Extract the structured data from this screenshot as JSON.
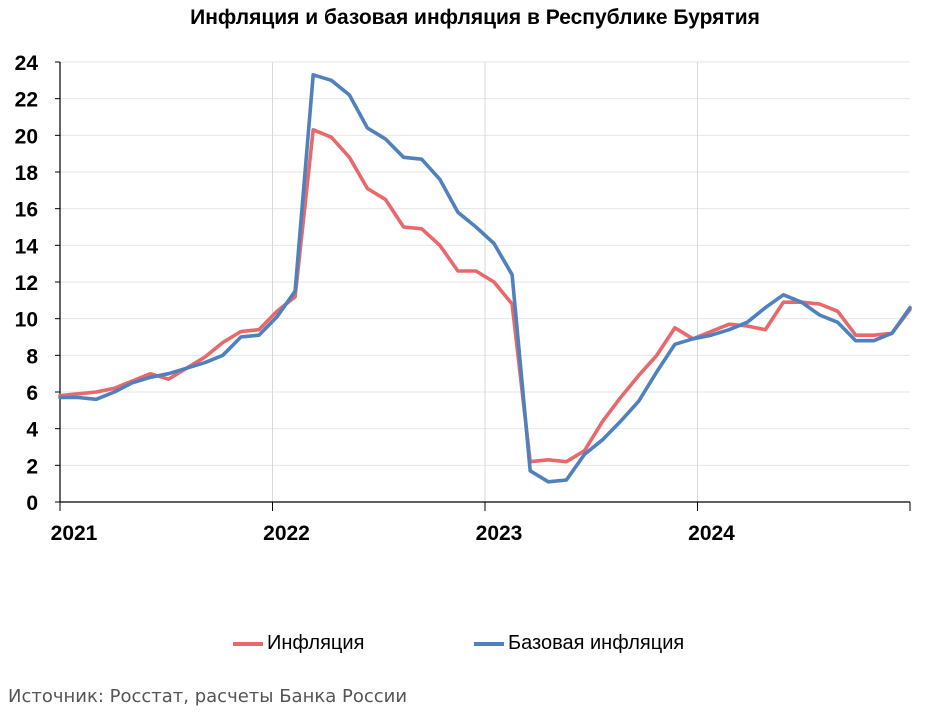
{
  "chart_data": {
    "type": "line",
    "title": "Инфляция и базовая инфляция в Республике Бурятия",
    "xlabel": "",
    "ylabel": "",
    "ylim": [
      0,
      24
    ],
    "yticks": [
      0,
      2,
      4,
      6,
      8,
      10,
      12,
      14,
      16,
      18,
      20,
      22,
      24
    ],
    "xticks": [
      "2021",
      "2022",
      "2023",
      "2024"
    ],
    "grid": "vertical lines at year boundaries, horizontal gridlines at each y tick",
    "legend_position": "bottom",
    "x_start": "2021-01",
    "x_end": "2024-12",
    "x": [
      "2021-01",
      "2021-02",
      "2021-03",
      "2021-04",
      "2021-05",
      "2021-06",
      "2021-07",
      "2021-08",
      "2021-09",
      "2021-10",
      "2021-11",
      "2021-12",
      "2022-01",
      "2022-02",
      "2022-03",
      "2022-04",
      "2022-05",
      "2022-06",
      "2022-07",
      "2022-08",
      "2022-09",
      "2022-10",
      "2022-11",
      "2022-12",
      "2023-01",
      "2023-02",
      "2023-03",
      "2023-04",
      "2023-05",
      "2023-06",
      "2023-07",
      "2023-08",
      "2023-09",
      "2023-10",
      "2023-11",
      "2023-12",
      "2024-01",
      "2024-02",
      "2024-03",
      "2024-04",
      "2024-05",
      "2024-06",
      "2024-07",
      "2024-08",
      "2024-09",
      "2024-10",
      "2024-11",
      "2024-12"
    ],
    "series": [
      {
        "name": "Инфляция",
        "color": "#e8696b",
        "values": [
          5.8,
          5.9,
          6.0,
          6.2,
          6.6,
          7.0,
          6.7,
          7.3,
          7.9,
          8.7,
          9.3,
          9.4,
          10.4,
          11.2,
          20.3,
          19.9,
          18.8,
          17.1,
          16.5,
          15.0,
          14.9,
          14.0,
          12.6,
          12.6,
          12.0,
          10.8,
          2.2,
          2.3,
          2.2,
          2.8,
          4.4,
          5.7,
          6.9,
          8.0,
          9.5,
          8.9,
          9.3,
          9.7,
          9.6,
          9.4,
          10.9,
          10.9,
          10.8,
          10.4,
          9.1,
          9.1,
          9.2,
          10.5
        ]
      },
      {
        "name": "Базовая инфляция",
        "color": "#4f81bd",
        "values": [
          5.7,
          5.7,
          5.6,
          6.0,
          6.5,
          6.8,
          7.0,
          7.3,
          7.6,
          8.0,
          9.0,
          9.1,
          10.1,
          11.5,
          23.3,
          23.0,
          22.2,
          20.4,
          19.8,
          18.8,
          18.7,
          17.6,
          15.8,
          15.0,
          14.1,
          12.4,
          1.7,
          1.1,
          1.2,
          2.6,
          3.4,
          4.4,
          5.5,
          7.1,
          8.6,
          8.9,
          9.1,
          9.4,
          9.8,
          10.6,
          11.3,
          10.9,
          10.2,
          9.8,
          8.8,
          8.8,
          9.2,
          10.6
        ]
      }
    ]
  },
  "legend": {
    "items": [
      {
        "label": "Инфляция",
        "color": "#e8696b"
      },
      {
        "label": "Базовая инфляция",
        "color": "#4f81bd"
      }
    ]
  },
  "source_note": "Источник: Росстат, расчеты Банка России"
}
